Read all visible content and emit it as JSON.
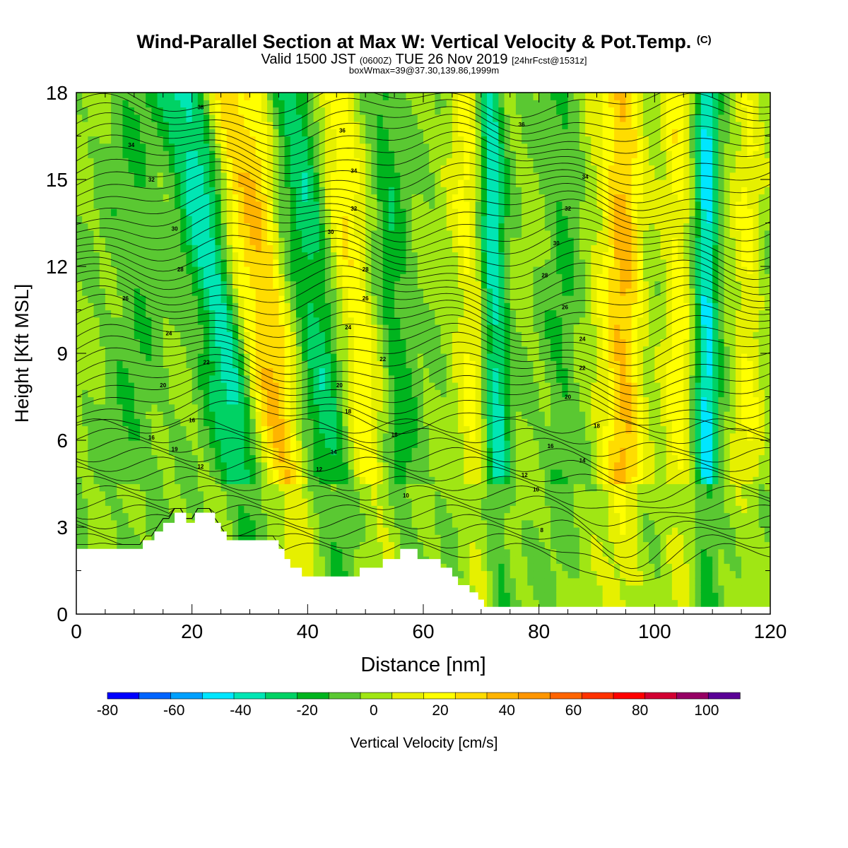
{
  "chart_data": {
    "type": "heatmap",
    "title": "Wind-Parallel Section at Max W: Vertical Velocity & Pot.Temp.",
    "title_mark": "(C)",
    "subtitle_main": "Valid 1500 JST",
    "subtitle_utc": "(0600Z)",
    "subtitle_date": "TUE 26 Nov 2019",
    "subtitle_fcst": "[24hrFcst@1531z]",
    "box_info": "boxWmax=39@37.30,139.86,1999m",
    "xlabel": "Distance [nm]",
    "ylabel": "Height [Kft MSL]",
    "xlim": [
      0,
      120
    ],
    "ylim": [
      0,
      18
    ],
    "x_ticks": [
      0,
      20,
      40,
      60,
      80,
      100,
      120
    ],
    "y_ticks": [
      0,
      3,
      6,
      9,
      12,
      15,
      18
    ],
    "colorbar": {
      "label": "Vertical Velocity [cm/s]",
      "ticks": [
        -80,
        -60,
        -40,
        -20,
        0,
        20,
        40,
        60,
        80,
        100
      ],
      "bounds": [
        -80,
        -70,
        -60,
        -50,
        -40,
        -30,
        -20,
        -10,
        0,
        10,
        20,
        30,
        40,
        50,
        60,
        70,
        80,
        90,
        100,
        110
      ],
      "colors": [
        "#0000ff",
        "#0064ff",
        "#00a0ff",
        "#00e6ff",
        "#00e6b4",
        "#00d264",
        "#00b41e",
        "#5ac832",
        "#a0e614",
        "#e6f000",
        "#ffff00",
        "#ffdc00",
        "#ffb400",
        "#ff9600",
        "#ff6400",
        "#ff3200",
        "#ff0000",
        "#d20032",
        "#960064",
        "#5a0096"
      ]
    },
    "velocity_bands": [
      {
        "x": 19,
        "w": 4.5,
        "tilt": 0.9,
        "v": -40
      },
      {
        "x": 25,
        "w": 3.5,
        "tilt": 0.7,
        "v": 35
      },
      {
        "x": 30,
        "w": 3,
        "tilt": 0.6,
        "v": 28
      },
      {
        "x": 38,
        "w": 4.5,
        "tilt": 0.6,
        "v": -30
      },
      {
        "x": 44,
        "w": 4,
        "tilt": 0.5,
        "v": 30
      },
      {
        "x": 53,
        "w": 3,
        "tilt": 0.3,
        "v": -18
      },
      {
        "x": 71.5,
        "w": 2.2,
        "tilt": 0.1,
        "v": -40
      },
      {
        "x": 67,
        "w": 3,
        "tilt": 0.2,
        "v": 20
      },
      {
        "x": 93,
        "w": 4,
        "tilt": 0.05,
        "v": 18
      },
      {
        "x": 109,
        "w": 2,
        "tilt": 0.0,
        "v": -45
      },
      {
        "x": 104,
        "w": 2.5,
        "tilt": 0.0,
        "v": 22
      },
      {
        "x": 116,
        "w": 2.5,
        "tilt": 0.0,
        "v": 18
      },
      {
        "x": 10,
        "w": 5,
        "tilt": 0.0,
        "v": -10
      },
      {
        "x": 84,
        "w": 3,
        "tilt": 0.0,
        "v": -12
      },
      {
        "x": 95,
        "w": 3,
        "tilt": 0.0,
        "v": 24
      }
    ],
    "terrain": {
      "x": [
        0,
        11.5,
        11.5,
        13.5,
        13.5,
        15,
        15,
        17,
        17,
        19,
        19,
        20.5,
        20.5,
        24,
        24,
        25,
        25,
        26,
        26,
        28,
        28,
        35,
        35,
        36,
        36,
        37,
        37,
        39,
        39,
        42,
        42,
        45,
        45,
        49,
        49,
        53,
        53,
        56,
        56,
        59,
        59,
        63,
        63,
        65,
        65,
        66,
        66,
        68,
        68,
        69.5,
        69.5,
        70.5,
        70.5,
        71.5,
        71.5,
        72.5,
        72.5,
        73.5,
        73.5,
        120
      ],
      "y": [
        2.25,
        2.25,
        2.55,
        2.55,
        2.85,
        2.85,
        3.15,
        3.15,
        3.5,
        3.5,
        3.15,
        3.15,
        3.5,
        3.5,
        3.15,
        3.15,
        2.85,
        2.85,
        2.55,
        2.55,
        2.55,
        2.55,
        2.25,
        2.25,
        1.9,
        1.9,
        1.6,
        1.6,
        1.3,
        1.3,
        1.3,
        1.3,
        1.3,
        1.3,
        1.6,
        1.6,
        1.9,
        1.9,
        2.25,
        2.25,
        1.9,
        1.9,
        1.6,
        1.6,
        1.3,
        1.3,
        1.0,
        1.0,
        0.75,
        0.75,
        0.5,
        0.5,
        0.25,
        0.25,
        0.25,
        0.25,
        0.25,
        0.25,
        0.25,
        0.25
      ]
    },
    "isentrope_labels": [
      {
        "x": 21.5,
        "y": 17.5,
        "text": "38"
      },
      {
        "x": 9.5,
        "y": 16.2,
        "text": "34"
      },
      {
        "x": 13,
        "y": 15.0,
        "text": "32"
      },
      {
        "x": 17,
        "y": 13.3,
        "text": "30"
      },
      {
        "x": 18,
        "y": 11.9,
        "text": "28"
      },
      {
        "x": 8.5,
        "y": 10.9,
        "text": "26"
      },
      {
        "x": 16,
        "y": 9.7,
        "text": "24"
      },
      {
        "x": 22.5,
        "y": 8.7,
        "text": "22"
      },
      {
        "x": 15,
        "y": 7.9,
        "text": "20"
      },
      {
        "x": 20,
        "y": 6.7,
        "text": "16"
      },
      {
        "x": 13,
        "y": 6.1,
        "text": "16"
      },
      {
        "x": 17,
        "y": 5.7,
        "text": "19"
      },
      {
        "x": 21.5,
        "y": 5.1,
        "text": "12"
      },
      {
        "x": 46,
        "y": 16.7,
        "text": "36"
      },
      {
        "x": 48,
        "y": 15.3,
        "text": "34"
      },
      {
        "x": 48,
        "y": 14.0,
        "text": "32"
      },
      {
        "x": 44,
        "y": 13.2,
        "text": "30"
      },
      {
        "x": 50,
        "y": 11.9,
        "text": "28"
      },
      {
        "x": 50,
        "y": 10.9,
        "text": "26"
      },
      {
        "x": 47,
        "y": 9.9,
        "text": "24"
      },
      {
        "x": 53,
        "y": 8.8,
        "text": "22"
      },
      {
        "x": 45.5,
        "y": 7.9,
        "text": "20"
      },
      {
        "x": 47,
        "y": 7.0,
        "text": "18"
      },
      {
        "x": 55,
        "y": 6.2,
        "text": "16"
      },
      {
        "x": 44.5,
        "y": 5.6,
        "text": "14"
      },
      {
        "x": 42,
        "y": 5.0,
        "text": "12"
      },
      {
        "x": 57,
        "y": 4.1,
        "text": "10"
      },
      {
        "x": 77,
        "y": 16.9,
        "text": "36"
      },
      {
        "x": 88,
        "y": 15.1,
        "text": "34"
      },
      {
        "x": 85,
        "y": 14.0,
        "text": "32"
      },
      {
        "x": 83,
        "y": 12.8,
        "text": "30"
      },
      {
        "x": 81,
        "y": 11.7,
        "text": "28"
      },
      {
        "x": 84.5,
        "y": 10.6,
        "text": "26"
      },
      {
        "x": 87.5,
        "y": 9.5,
        "text": "24"
      },
      {
        "x": 87.5,
        "y": 8.5,
        "text": "22"
      },
      {
        "x": 85,
        "y": 7.5,
        "text": "20"
      },
      {
        "x": 90,
        "y": 6.5,
        "text": "18"
      },
      {
        "x": 82,
        "y": 5.8,
        "text": "16"
      },
      {
        "x": 87.5,
        "y": 5.3,
        "text": "14"
      },
      {
        "x": 77.5,
        "y": 4.8,
        "text": "12"
      },
      {
        "x": 79.5,
        "y": 4.3,
        "text": "10"
      },
      {
        "x": 80.5,
        "y": 2.9,
        "text": "8"
      }
    ]
  }
}
